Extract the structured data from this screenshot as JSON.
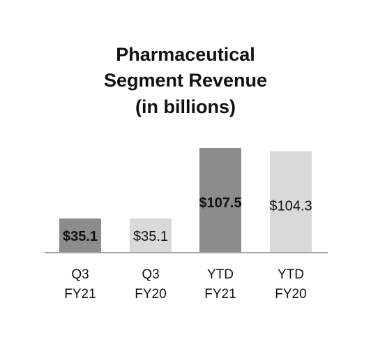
{
  "chart_data": {
    "type": "bar",
    "title_lines": [
      "Pharmaceutical",
      "Segment Revenue",
      "(in billions)"
    ],
    "categories": [
      [
        "Q3",
        "FY21"
      ],
      [
        "Q3",
        "FY20"
      ],
      [
        "YTD",
        "FY21"
      ],
      [
        "YTD",
        "FY20"
      ]
    ],
    "values": [
      35.1,
      35.1,
      107.5,
      104.3
    ],
    "value_labels": [
      "$35.1",
      "$35.1",
      "$107.5",
      "$104.3"
    ],
    "label_bold": [
      true,
      false,
      true,
      false
    ],
    "bar_colors": [
      "#8c8c8c",
      "#d9d9d9",
      "#8c8c8c",
      "#d9d9d9"
    ],
    "axis_color": "#a6a6a6",
    "ylim": [
      0,
      107.5
    ],
    "grid": false
  }
}
